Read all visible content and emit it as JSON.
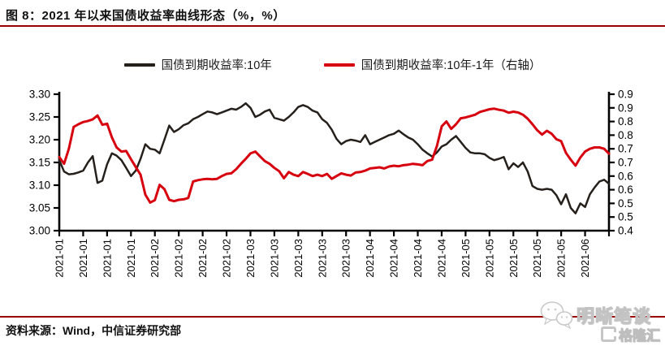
{
  "page": {
    "title": "图 8：2021 年以来国债收益率曲线形态（%，%）",
    "source_note": "资料来源：Wind，中信证券研究部",
    "accent_rule_color": "#990000",
    "watermark": {
      "wechat_name": "明晰笔谈",
      "logo_text": "格隆汇",
      "wechat_icon": "wechat-bubbles-icon",
      "logo_icon": "g-bracket-icon"
    }
  },
  "chart_data": {
    "type": "line",
    "dual_axis": true,
    "legend_position": "top",
    "grid": false,
    "plot_frame": {
      "left_axis": true,
      "bottom_axis": true,
      "right_axis": true,
      "top_axis": false
    },
    "left_axis": {
      "min": 3.0,
      "max": 3.3,
      "step": 0.05,
      "tick_labels_top_to_bottom": [
        "3.30",
        "3.25",
        "3.20",
        "3.15",
        "3.10",
        "3.05",
        "3.00"
      ]
    },
    "right_axis": {
      "min": 0.4,
      "max": 0.9,
      "step": 0.05,
      "tick_labels_top_to_bottom": [
        "0.9",
        "0.9",
        "0.8",
        "0.8",
        "0.7",
        "0.7",
        "0.6",
        "0.6",
        "0.5",
        "0.5",
        "0.4"
      ]
    },
    "x_axis": {
      "tick_labels": [
        "2021-01",
        "2021-01",
        "2021-01",
        "2021-01",
        "2021-02",
        "2021-02",
        "2021-02",
        "2021-02",
        "2021-03",
        "2021-03",
        "2021-03",
        "2021-03",
        "2021-03",
        "2021-04",
        "2021-04",
        "2021-04",
        "2021-04",
        "2021-05",
        "2021-05",
        "2021-05",
        "2021-05",
        "2021-05",
        "2021-06"
      ],
      "points_per_tick": 5,
      "extra_unlabeled_end_tick": true,
      "label_rotation_deg": -90
    },
    "series": [
      {
        "name": "国债到期收益率:10年",
        "axis": "left",
        "color": "#26201c",
        "stroke_width": 2.5,
        "values": [
          3.155,
          3.13,
          3.124,
          3.125,
          3.128,
          3.132,
          3.15,
          3.164,
          3.105,
          3.11,
          3.146,
          3.17,
          3.165,
          3.155,
          3.138,
          3.12,
          3.132,
          3.158,
          3.19,
          3.18,
          3.178,
          3.17,
          3.2,
          3.231,
          3.217,
          3.223,
          3.232,
          3.236,
          3.245,
          3.25,
          3.256,
          3.262,
          3.26,
          3.256,
          3.26,
          3.264,
          3.268,
          3.266,
          3.272,
          3.28,
          3.27,
          3.25,
          3.255,
          3.262,
          3.266,
          3.248,
          3.245,
          3.242,
          3.25,
          3.26,
          3.272,
          3.276,
          3.272,
          3.264,
          3.26,
          3.245,
          3.237,
          3.222,
          3.202,
          3.19,
          3.197,
          3.2,
          3.198,
          3.195,
          3.21,
          3.19,
          3.195,
          3.2,
          3.205,
          3.21,
          3.213,
          3.22,
          3.212,
          3.205,
          3.2,
          3.19,
          3.178,
          3.17,
          3.163,
          3.172,
          3.185,
          3.19,
          3.2,
          3.208,
          3.195,
          3.182,
          3.172,
          3.17,
          3.17,
          3.168,
          3.16,
          3.155,
          3.158,
          3.162,
          3.135,
          3.148,
          3.14,
          3.15,
          3.13,
          3.098,
          3.092,
          3.09,
          3.092,
          3.09,
          3.078,
          3.058,
          3.08,
          3.05,
          3.038,
          3.06,
          3.052,
          3.08,
          3.095,
          3.108,
          3.112,
          3.103
        ]
      },
      {
        "name": "国债到期收益率:10年-1年（右轴）",
        "axis": "right",
        "color": "#d7000f",
        "stroke_width": 3,
        "values": [
          0.67,
          0.645,
          0.7,
          0.78,
          0.79,
          0.798,
          0.802,
          0.808,
          0.822,
          0.788,
          0.792,
          0.742,
          0.705,
          0.69,
          0.692,
          0.662,
          0.633,
          0.605,
          0.532,
          0.503,
          0.512,
          0.568,
          0.552,
          0.513,
          0.508,
          0.513,
          0.515,
          0.52,
          0.58,
          0.585,
          0.588,
          0.59,
          0.588,
          0.59,
          0.6,
          0.608,
          0.61,
          0.625,
          0.645,
          0.663,
          0.683,
          0.69,
          0.672,
          0.655,
          0.645,
          0.63,
          0.618,
          0.592,
          0.615,
          0.605,
          0.6,
          0.615,
          0.608,
          0.6,
          0.605,
          0.6,
          0.608,
          0.59,
          0.6,
          0.61,
          0.605,
          0.602,
          0.613,
          0.615,
          0.62,
          0.628,
          0.63,
          0.632,
          0.628,
          0.635,
          0.638,
          0.636,
          0.64,
          0.642,
          0.645,
          0.643,
          0.64,
          0.655,
          0.66,
          0.71,
          0.782,
          0.8,
          0.773,
          0.79,
          0.812,
          0.815,
          0.82,
          0.825,
          0.835,
          0.84,
          0.845,
          0.847,
          0.843,
          0.84,
          0.832,
          0.836,
          0.833,
          0.825,
          0.81,
          0.79,
          0.768,
          0.752,
          0.766,
          0.755,
          0.735,
          0.728,
          0.685,
          0.66,
          0.638,
          0.668,
          0.69,
          0.7,
          0.705,
          0.705,
          0.7,
          0.682
        ]
      }
    ]
  }
}
